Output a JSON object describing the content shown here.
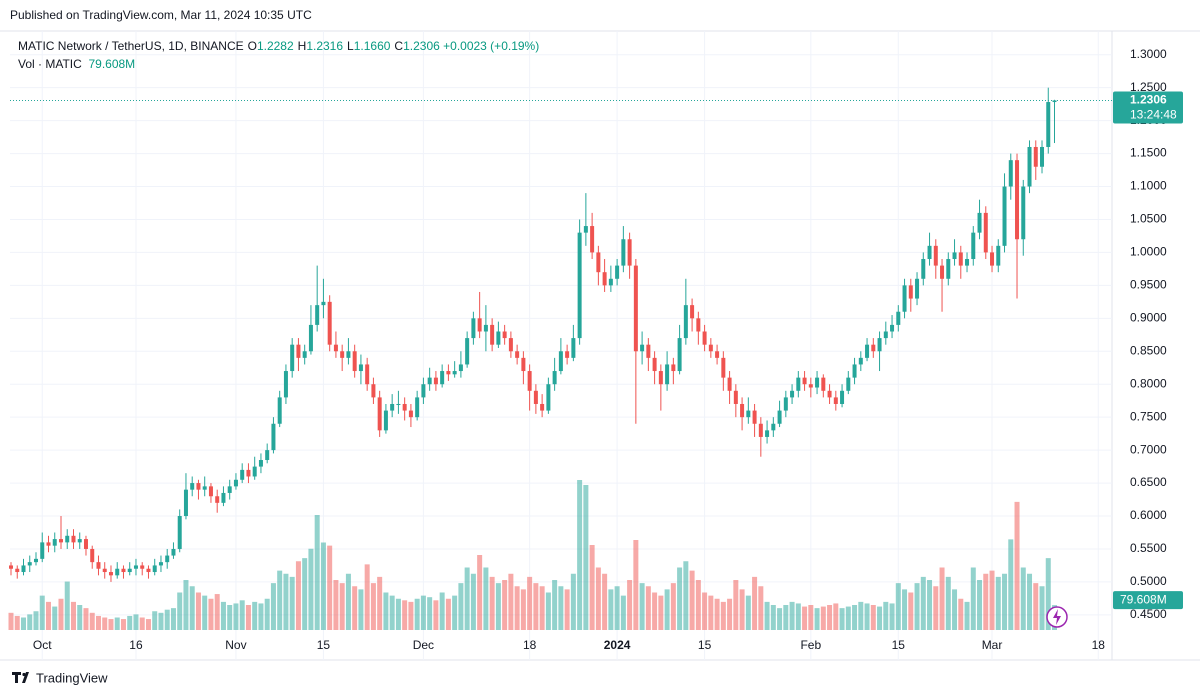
{
  "header": {
    "published": "Published on TradingView.com, Mar 11, 2024 10:35 UTC"
  },
  "footer": {
    "brand": "TradingView"
  },
  "chart_data": {
    "type": "candlestick",
    "legend": {
      "symbol": "MATIC Network / TetherUS, 1D, BINANCE",
      "fields": [
        {
          "key": "O",
          "text": "1.2282"
        },
        {
          "key": "H",
          "text": "1.2316"
        },
        {
          "key": "L",
          "text": "1.1660"
        },
        {
          "key": "C",
          "text": "1.2306"
        }
      ],
      "change": "+0.0023 (+0.19%)",
      "volume_name": "Vol · MATIC"
    },
    "up_color": "#26a69a",
    "down_color": "#ef5350",
    "ohlc": [
      [
        0.525,
        0.53,
        0.51,
        0.52
      ],
      [
        0.52,
        0.525,
        0.505,
        0.515
      ],
      [
        0.515,
        0.535,
        0.51,
        0.525
      ],
      [
        0.525,
        0.54,
        0.515,
        0.53
      ],
      [
        0.53,
        0.545,
        0.525,
        0.535
      ],
      [
        0.535,
        0.575,
        0.53,
        0.56
      ],
      [
        0.56,
        0.57,
        0.545,
        0.555
      ],
      [
        0.555,
        0.575,
        0.545,
        0.565
      ],
      [
        0.565,
        0.6,
        0.55,
        0.56
      ],
      [
        0.56,
        0.58,
        0.55,
        0.57
      ],
      [
        0.57,
        0.58,
        0.55,
        0.56
      ],
      [
        0.56,
        0.575,
        0.55,
        0.565
      ],
      [
        0.565,
        0.57,
        0.54,
        0.55
      ],
      [
        0.55,
        0.555,
        0.52,
        0.53
      ],
      [
        0.53,
        0.54,
        0.51,
        0.52
      ],
      [
        0.52,
        0.53,
        0.505,
        0.515
      ],
      [
        0.515,
        0.525,
        0.5,
        0.51
      ],
      [
        0.51,
        0.53,
        0.505,
        0.52
      ],
      [
        0.52,
        0.525,
        0.505,
        0.515
      ],
      [
        0.515,
        0.53,
        0.51,
        0.52
      ],
      [
        0.52,
        0.535,
        0.51,
        0.525
      ],
      [
        0.525,
        0.53,
        0.51,
        0.52
      ],
      [
        0.52,
        0.525,
        0.505,
        0.515
      ],
      [
        0.515,
        0.535,
        0.51,
        0.525
      ],
      [
        0.525,
        0.54,
        0.515,
        0.53
      ],
      [
        0.53,
        0.55,
        0.52,
        0.54
      ],
      [
        0.54,
        0.56,
        0.535,
        0.55
      ],
      [
        0.55,
        0.61,
        0.545,
        0.6
      ],
      [
        0.6,
        0.665,
        0.595,
        0.64
      ],
      [
        0.64,
        0.66,
        0.63,
        0.65
      ],
      [
        0.65,
        0.655,
        0.625,
        0.64
      ],
      [
        0.64,
        0.66,
        0.63,
        0.645
      ],
      [
        0.645,
        0.65,
        0.62,
        0.63
      ],
      [
        0.63,
        0.64,
        0.605,
        0.62
      ],
      [
        0.62,
        0.645,
        0.615,
        0.635
      ],
      [
        0.635,
        0.655,
        0.625,
        0.645
      ],
      [
        0.645,
        0.665,
        0.64,
        0.655
      ],
      [
        0.655,
        0.68,
        0.65,
        0.67
      ],
      [
        0.67,
        0.68,
        0.65,
        0.66
      ],
      [
        0.66,
        0.69,
        0.655,
        0.675
      ],
      [
        0.675,
        0.695,
        0.665,
        0.685
      ],
      [
        0.685,
        0.71,
        0.68,
        0.7
      ],
      [
        0.7,
        0.75,
        0.695,
        0.74
      ],
      [
        0.74,
        0.79,
        0.735,
        0.78
      ],
      [
        0.78,
        0.83,
        0.77,
        0.82
      ],
      [
        0.82,
        0.87,
        0.81,
        0.86
      ],
      [
        0.86,
        0.87,
        0.82,
        0.84
      ],
      [
        0.84,
        0.86,
        0.83,
        0.85
      ],
      [
        0.85,
        0.92,
        0.845,
        0.89
      ],
      [
        0.89,
        0.98,
        0.88,
        0.92
      ],
      [
        0.92,
        0.96,
        0.9,
        0.925
      ],
      [
        0.925,
        0.935,
        0.85,
        0.86
      ],
      [
        0.86,
        0.88,
        0.84,
        0.85
      ],
      [
        0.85,
        0.86,
        0.82,
        0.84
      ],
      [
        0.84,
        0.87,
        0.83,
        0.85
      ],
      [
        0.85,
        0.86,
        0.81,
        0.82
      ],
      [
        0.82,
        0.845,
        0.8,
        0.83
      ],
      [
        0.83,
        0.84,
        0.79,
        0.8
      ],
      [
        0.8,
        0.81,
        0.77,
        0.78
      ],
      [
        0.78,
        0.79,
        0.72,
        0.73
      ],
      [
        0.73,
        0.77,
        0.725,
        0.76
      ],
      [
        0.76,
        0.785,
        0.75,
        0.77
      ],
      [
        0.77,
        0.79,
        0.755,
        0.77
      ],
      [
        0.77,
        0.78,
        0.745,
        0.76
      ],
      [
        0.76,
        0.77,
        0.735,
        0.75
      ],
      [
        0.75,
        0.79,
        0.745,
        0.78
      ],
      [
        0.78,
        0.81,
        0.77,
        0.8
      ],
      [
        0.8,
        0.825,
        0.79,
        0.81
      ],
      [
        0.81,
        0.82,
        0.79,
        0.8
      ],
      [
        0.8,
        0.83,
        0.795,
        0.82
      ],
      [
        0.82,
        0.83,
        0.805,
        0.815
      ],
      [
        0.815,
        0.835,
        0.81,
        0.82
      ],
      [
        0.82,
        0.85,
        0.81,
        0.83
      ],
      [
        0.83,
        0.88,
        0.825,
        0.87
      ],
      [
        0.87,
        0.91,
        0.86,
        0.9
      ],
      [
        0.9,
        0.94,
        0.87,
        0.88
      ],
      [
        0.88,
        0.92,
        0.85,
        0.89
      ],
      [
        0.89,
        0.9,
        0.85,
        0.86
      ],
      [
        0.86,
        0.895,
        0.855,
        0.88
      ],
      [
        0.88,
        0.89,
        0.86,
        0.87
      ],
      [
        0.87,
        0.88,
        0.84,
        0.85
      ],
      [
        0.85,
        0.86,
        0.83,
        0.84
      ],
      [
        0.84,
        0.85,
        0.8,
        0.82
      ],
      [
        0.82,
        0.83,
        0.76,
        0.79
      ],
      [
        0.79,
        0.8,
        0.755,
        0.77
      ],
      [
        0.77,
        0.785,
        0.75,
        0.76
      ],
      [
        0.76,
        0.81,
        0.755,
        0.8
      ],
      [
        0.8,
        0.84,
        0.79,
        0.82
      ],
      [
        0.82,
        0.87,
        0.815,
        0.85
      ],
      [
        0.85,
        0.86,
        0.83,
        0.84
      ],
      [
        0.84,
        0.89,
        0.835,
        0.87
      ],
      [
        0.87,
        1.05,
        0.86,
        1.03
      ],
      [
        1.03,
        1.09,
        1.01,
        1.04
      ],
      [
        1.04,
        1.06,
        0.99,
        1.0
      ],
      [
        1.0,
        1.01,
        0.95,
        0.97
      ],
      [
        0.97,
        0.99,
        0.94,
        0.95
      ],
      [
        0.95,
        0.98,
        0.94,
        0.96
      ],
      [
        0.96,
        0.99,
        0.95,
        0.98
      ],
      [
        0.98,
        1.04,
        0.97,
        1.02
      ],
      [
        1.02,
        1.03,
        0.96,
        0.98
      ],
      [
        0.98,
        0.99,
        0.74,
        0.85
      ],
      [
        0.85,
        0.88,
        0.83,
        0.86
      ],
      [
        0.86,
        0.87,
        0.82,
        0.84
      ],
      [
        0.84,
        0.85,
        0.8,
        0.82
      ],
      [
        0.82,
        0.83,
        0.76,
        0.8
      ],
      [
        0.8,
        0.85,
        0.79,
        0.83
      ],
      [
        0.83,
        0.84,
        0.8,
        0.82
      ],
      [
        0.82,
        0.89,
        0.815,
        0.87
      ],
      [
        0.87,
        0.96,
        0.86,
        0.92
      ],
      [
        0.92,
        0.93,
        0.88,
        0.9
      ],
      [
        0.9,
        0.91,
        0.86,
        0.88
      ],
      [
        0.88,
        0.89,
        0.85,
        0.86
      ],
      [
        0.86,
        0.87,
        0.84,
        0.85
      ],
      [
        0.85,
        0.86,
        0.83,
        0.84
      ],
      [
        0.84,
        0.85,
        0.79,
        0.81
      ],
      [
        0.81,
        0.82,
        0.77,
        0.79
      ],
      [
        0.79,
        0.8,
        0.75,
        0.77
      ],
      [
        0.77,
        0.78,
        0.73,
        0.75
      ],
      [
        0.75,
        0.78,
        0.74,
        0.76
      ],
      [
        0.76,
        0.77,
        0.72,
        0.74
      ],
      [
        0.74,
        0.75,
        0.69,
        0.72
      ],
      [
        0.72,
        0.745,
        0.71,
        0.73
      ],
      [
        0.73,
        0.75,
        0.72,
        0.74
      ],
      [
        0.74,
        0.775,
        0.735,
        0.76
      ],
      [
        0.76,
        0.79,
        0.75,
        0.78
      ],
      [
        0.78,
        0.8,
        0.77,
        0.79
      ],
      [
        0.79,
        0.82,
        0.78,
        0.81
      ],
      [
        0.81,
        0.82,
        0.79,
        0.8
      ],
      [
        0.8,
        0.81,
        0.78,
        0.795
      ],
      [
        0.795,
        0.82,
        0.785,
        0.81
      ],
      [
        0.81,
        0.815,
        0.78,
        0.79
      ],
      [
        0.79,
        0.8,
        0.77,
        0.78
      ],
      [
        0.78,
        0.79,
        0.76,
        0.77
      ],
      [
        0.77,
        0.8,
        0.765,
        0.79
      ],
      [
        0.79,
        0.82,
        0.785,
        0.81
      ],
      [
        0.81,
        0.84,
        0.8,
        0.83
      ],
      [
        0.83,
        0.85,
        0.82,
        0.84
      ],
      [
        0.84,
        0.87,
        0.835,
        0.86
      ],
      [
        0.86,
        0.87,
        0.84,
        0.85
      ],
      [
        0.85,
        0.88,
        0.82,
        0.87
      ],
      [
        0.87,
        0.895,
        0.86,
        0.88
      ],
      [
        0.88,
        0.905,
        0.87,
        0.89
      ],
      [
        0.89,
        0.92,
        0.88,
        0.91
      ],
      [
        0.91,
        0.96,
        0.9,
        0.95
      ],
      [
        0.95,
        0.96,
        0.91,
        0.93
      ],
      [
        0.93,
        0.97,
        0.92,
        0.96
      ],
      [
        0.96,
        1.0,
        0.95,
        0.99
      ],
      [
        0.99,
        1.03,
        0.98,
        1.01
      ],
      [
        1.01,
        1.02,
        0.96,
        0.98
      ],
      [
        0.98,
        0.99,
        0.91,
        0.96
      ],
      [
        0.96,
        1.0,
        0.95,
        0.99
      ],
      [
        0.99,
        1.02,
        0.98,
        1.0
      ],
      [
        1.0,
        1.01,
        0.96,
        0.98
      ],
      [
        0.98,
        1.0,
        0.97,
        0.99
      ],
      [
        0.99,
        1.04,
        0.98,
        1.03
      ],
      [
        1.03,
        1.08,
        1.02,
        1.06
      ],
      [
        1.06,
        1.07,
        0.99,
        1.0
      ],
      [
        1.0,
        1.01,
        0.97,
        0.98
      ],
      [
        0.98,
        1.02,
        0.97,
        1.01
      ],
      [
        1.01,
        1.12,
        1.0,
        1.1
      ],
      [
        1.1,
        1.15,
        1.08,
        1.14
      ],
      [
        1.14,
        1.15,
        0.93,
        1.02
      ],
      [
        1.02,
        1.11,
        0.995,
        1.1
      ],
      [
        1.1,
        1.17,
        1.09,
        1.16
      ],
      [
        1.16,
        1.17,
        1.11,
        1.13
      ],
      [
        1.13,
        1.17,
        1.12,
        1.16
      ],
      [
        1.16,
        1.25,
        1.15,
        1.2282
      ],
      [
        1.2282,
        1.2316,
        1.166,
        1.2306
      ]
    ],
    "volume": [
      55,
      45,
      40,
      50,
      60,
      110,
      90,
      75,
      100,
      155,
      90,
      80,
      70,
      55,
      45,
      40,
      35,
      40,
      35,
      45,
      50,
      40,
      35,
      60,
      55,
      65,
      70,
      120,
      160,
      140,
      120,
      110,
      100,
      115,
      90,
      80,
      85,
      95,
      80,
      90,
      85,
      100,
      150,
      190,
      180,
      170,
      220,
      230,
      260,
      368,
      280,
      270,
      160,
      150,
      180,
      140,
      130,
      210,
      150,
      170,
      120,
      110,
      100,
      95,
      90,
      100,
      110,
      105,
      95,
      120,
      100,
      110,
      150,
      200,
      180,
      240,
      200,
      170,
      150,
      160,
      180,
      140,
      130,
      170,
      150,
      140,
      120,
      160,
      140,
      130,
      180,
      480,
      464,
      272,
      200,
      180,
      130,
      140,
      110,
      160,
      288,
      150,
      140,
      120,
      110,
      130,
      150,
      200,
      220,
      190,
      160,
      120,
      110,
      100,
      90,
      100,
      160,
      130,
      110,
      170,
      140,
      90,
      80,
      70,
      80,
      90,
      85,
      75,
      80,
      70,
      75,
      80,
      85,
      70,
      75,
      80,
      90,
      85,
      80,
      75,
      90,
      85,
      150,
      130,
      120,
      150,
      170,
      160,
      140,
      200,
      170,
      130,
      100,
      90,
      200,
      160,
      180,
      190,
      170,
      180,
      290,
      410,
      200,
      180,
      150,
      140,
      230,
      79.608
    ],
    "volume_label": "79.608M",
    "vlim": [
      0,
      640
    ],
    "last_price": {
      "value": 1.2306,
      "label": "1.2306",
      "countdown": "13:24:48"
    },
    "ylim": [
      0.424,
      1.336
    ],
    "yticks": [
      {
        "value": 1.3,
        "label": "1.3000"
      },
      {
        "value": 1.25,
        "label": "1.2500"
      },
      {
        "value": 1.2,
        "label": "1.2000"
      },
      {
        "value": 1.15,
        "label": "1.1500"
      },
      {
        "value": 1.1,
        "label": "1.1000"
      },
      {
        "value": 1.05,
        "label": "1.0500"
      },
      {
        "value": 1.0,
        "label": "1.0000"
      },
      {
        "value": 0.95,
        "label": "0.9500"
      },
      {
        "value": 0.9,
        "label": "0.9000"
      },
      {
        "value": 0.85,
        "label": "0.8500"
      },
      {
        "value": 0.8,
        "label": "0.8000"
      },
      {
        "value": 0.75,
        "label": "0.7500"
      },
      {
        "value": 0.7,
        "label": "0.7000"
      },
      {
        "value": 0.65,
        "label": "0.6500"
      },
      {
        "value": 0.6,
        "label": "0.6000"
      },
      {
        "value": 0.55,
        "label": "0.5500"
      },
      {
        "value": 0.5,
        "label": "0.5000"
      },
      {
        "value": 0.45,
        "label": "0.4500"
      }
    ],
    "xlim": [
      -0.16,
      176.2
    ],
    "xticks": [
      {
        "value": 5,
        "label": "Oct"
      },
      {
        "value": 20,
        "label": "16"
      },
      {
        "value": 36,
        "label": "Nov"
      },
      {
        "value": 50,
        "label": "15"
      },
      {
        "value": 66,
        "label": "Dec"
      },
      {
        "value": 83,
        "label": "18"
      },
      {
        "value": 97,
        "label": "2024"
      },
      {
        "value": 111,
        "label": "15"
      },
      {
        "value": 128,
        "label": "Feb"
      },
      {
        "value": 142,
        "label": "15"
      },
      {
        "value": 157,
        "label": "Mar"
      },
      {
        "value": 174,
        "label": "18"
      }
    ],
    "grid": true
  }
}
